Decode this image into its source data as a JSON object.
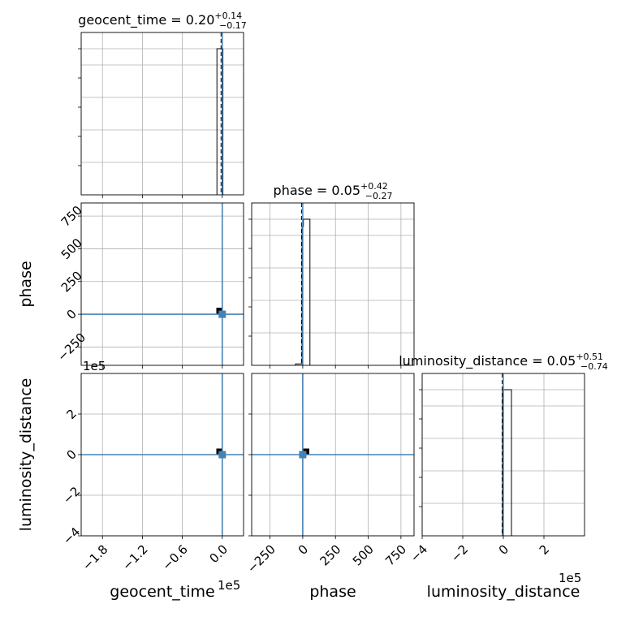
{
  "chart_data": {
    "type": "corner",
    "parameters": [
      "geocent_time",
      "phase",
      "luminosity_distance"
    ],
    "axis_labels": {
      "x": [
        "geocent_time",
        "phase",
        "luminosity_distance"
      ],
      "y": [
        "phase",
        "luminosity_distance"
      ]
    },
    "titles": [
      {
        "param": "geocent_time",
        "prefix": "geocent_time = 0.20",
        "plus": "+0.14",
        "minus": "−0.17"
      },
      {
        "param": "phase",
        "prefix": "phase = 0.05",
        "plus": "+0.42",
        "minus": "−0.27"
      },
      {
        "param": "luminosity_distance",
        "prefix": "luminosity_distance = 0.05",
        "plus": "+0.51",
        "minus": "−0.74"
      }
    ],
    "axes": {
      "geocent_time": {
        "lim": [
          -212000,
          32000
        ],
        "scale_label": "1e5",
        "ticks": [
          -180000,
          -120000,
          -60000,
          0
        ],
        "tick_labels": [
          "−1.8",
          "−1.2",
          "−0.6",
          "0.0"
        ]
      },
      "phase": {
        "lim": [
          -390,
          850
        ],
        "ticks": [
          -250,
          0,
          250,
          500,
          750
        ],
        "tick_labels": [
          "−250",
          "0",
          "250",
          "500",
          "750"
        ]
      },
      "luminosity_distance": {
        "lim": [
          -400000,
          400000
        ],
        "scale_label": "1e5",
        "ticks": [
          -400000,
          -200000,
          0,
          200000
        ],
        "tick_labels": [
          "−4",
          "−2",
          "0",
          "2"
        ]
      }
    },
    "truths": {
      "geocent_time": 0,
      "phase": 0,
      "luminosity_distance": 0
    },
    "truth_color": "#4682b4",
    "histograms": {
      "geocent_time": {
        "edges": [
          -8000,
          0,
          1000
        ],
        "counts": [
          1.0,
          1.0
        ]
      },
      "phase": {
        "edges": [
          -55,
          -5,
          5,
          55
        ],
        "counts": [
          0.01,
          0.95,
          1.0
        ]
      },
      "luminosity_distance": {
        "edges": [
          -4000,
          4000,
          40000
        ],
        "counts": [
          1.0,
          1.0
        ]
      }
    },
    "pair_markers": [
      {
        "x_param": "geocent_time",
        "y_param": "phase",
        "x": -4000,
        "y": 25
      },
      {
        "x_param": "geocent_time",
        "y_param": "luminosity_distance",
        "x": -4000,
        "y": 14000
      },
      {
        "x_param": "phase",
        "y_param": "luminosity_distance",
        "x": 25,
        "y": 14000
      }
    ],
    "grid": true
  }
}
